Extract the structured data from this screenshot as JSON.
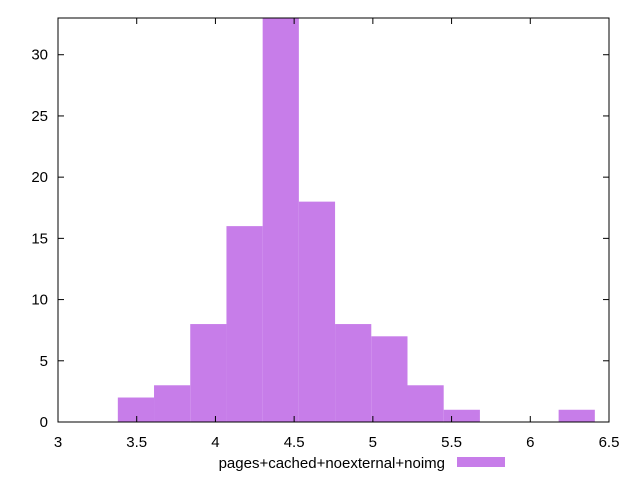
{
  "chart_data": {
    "type": "bar",
    "title": "",
    "xlabel": "",
    "ylabel": "",
    "xlim": [
      3,
      6.5
    ],
    "ylim": [
      0,
      33
    ],
    "bin_width": 0.23,
    "bins": [
      {
        "x0": 3.38,
        "x1": 3.61,
        "count": 2
      },
      {
        "x0": 3.61,
        "x1": 3.84,
        "count": 3
      },
      {
        "x0": 3.84,
        "x1": 4.07,
        "count": 8
      },
      {
        "x0": 4.07,
        "x1": 4.3,
        "count": 16
      },
      {
        "x0": 4.3,
        "x1": 4.53,
        "count": 33
      },
      {
        "x0": 4.53,
        "x1": 4.76,
        "count": 18
      },
      {
        "x0": 4.76,
        "x1": 4.99,
        "count": 8
      },
      {
        "x0": 4.99,
        "x1": 5.22,
        "count": 7
      },
      {
        "x0": 5.22,
        "x1": 5.45,
        "count": 3
      },
      {
        "x0": 5.45,
        "x1": 5.68,
        "count": 1
      },
      {
        "x0": 6.18,
        "x1": 6.41,
        "count": 1
      }
    ],
    "x_ticks": [
      "3",
      "3.5",
      "4",
      "4.5",
      "5",
      "5.5",
      "6",
      "6.5"
    ],
    "x_tick_values": [
      3,
      3.5,
      4,
      4.5,
      5,
      5.5,
      6,
      6.5
    ],
    "y_ticks": [
      "0",
      "5",
      "10",
      "15",
      "20",
      "25",
      "30"
    ],
    "y_tick_values": [
      0,
      5,
      10,
      15,
      20,
      25,
      30
    ],
    "series": [
      {
        "name": "pages+cached+noexternal+noimg",
        "color": "#c77de9"
      }
    ],
    "legend_position": "bottom",
    "grid": false
  }
}
